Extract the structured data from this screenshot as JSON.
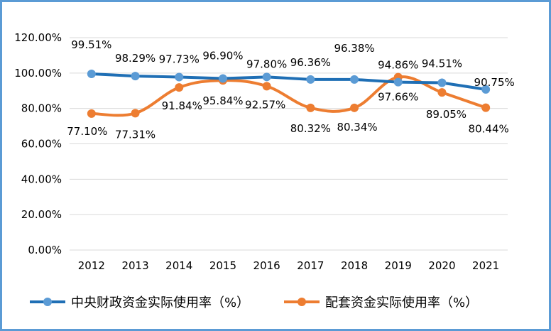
{
  "chart_data": {
    "type": "line",
    "title": "",
    "xlabel": "",
    "ylabel": "",
    "categories": [
      "2012",
      "2013",
      "2014",
      "2015",
      "2016",
      "2017",
      "2018",
      "2019",
      "2020",
      "2021"
    ],
    "ylim": [
      0,
      120
    ],
    "yticks": [
      "0.00%",
      "20.00%",
      "40.00%",
      "60.00%",
      "80.00%",
      "100.00%",
      "120.00%"
    ],
    "grid": true,
    "legend_position": "bottom",
    "series": [
      {
        "name": "中央财政资金实际使用率（%）",
        "color": "#1f6fb5",
        "marker_color": "#5b9bd5",
        "smooth": false,
        "values": [
          99.51,
          98.29,
          97.73,
          96.9,
          97.8,
          96.36,
          96.38,
          94.86,
          94.51,
          90.75
        ],
        "labels": [
          "99.51%",
          "98.29%",
          "97.73%",
          "96.90%",
          "97.80%",
          "96.36%",
          "96.38%",
          "94.86%",
          "94.51%",
          "90.75%"
        ]
      },
      {
        "name": "配套资金实际使用率（%）",
        "color": "#ed7d31",
        "marker_color": "#ed7d31",
        "smooth": true,
        "values": [
          77.1,
          77.31,
          91.84,
          95.84,
          92.57,
          80.32,
          80.34,
          97.66,
          89.05,
          80.44
        ],
        "labels": [
          "77.10%",
          "77.31%",
          "91.84%",
          "95.84%",
          "92.57%",
          "80.32%",
          "80.34%",
          "97.66%",
          "89.05%",
          "80.44%"
        ]
      }
    ]
  }
}
